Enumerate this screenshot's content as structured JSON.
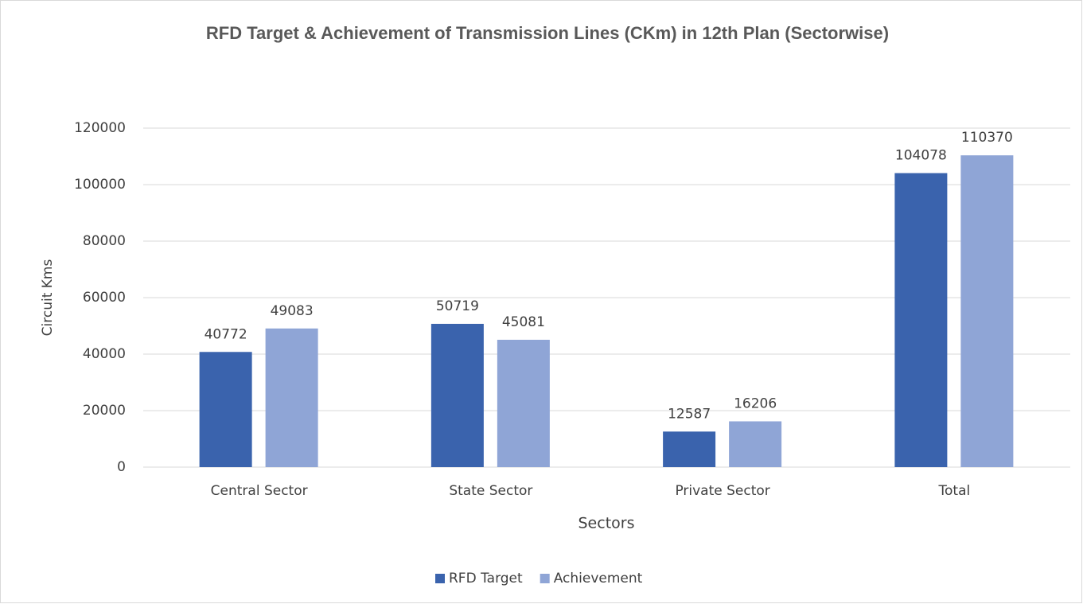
{
  "chart_data": {
    "type": "bar",
    "title": "RFD Target & Achievement of Transmission Lines (CKm) in 12th Plan (Sectorwise)",
    "x_label": "Sectors",
    "y_label": "Circuit Kms",
    "categories": [
      "Central Sector",
      "State Sector",
      "Private Sector",
      "Total"
    ],
    "series": [
      {
        "name": "RFD Target",
        "color": "#3a63ad",
        "values": [
          40772,
          50719,
          12587,
          104078
        ]
      },
      {
        "name": "Achievement",
        "color": "#8fa5d6",
        "values": [
          49083,
          45081,
          16206,
          110370
        ]
      }
    ],
    "ylim": [
      0,
      120000
    ],
    "yticks": [
      0,
      20000,
      40000,
      60000,
      80000,
      100000,
      120000
    ],
    "grid": true,
    "legend": "bottom"
  }
}
